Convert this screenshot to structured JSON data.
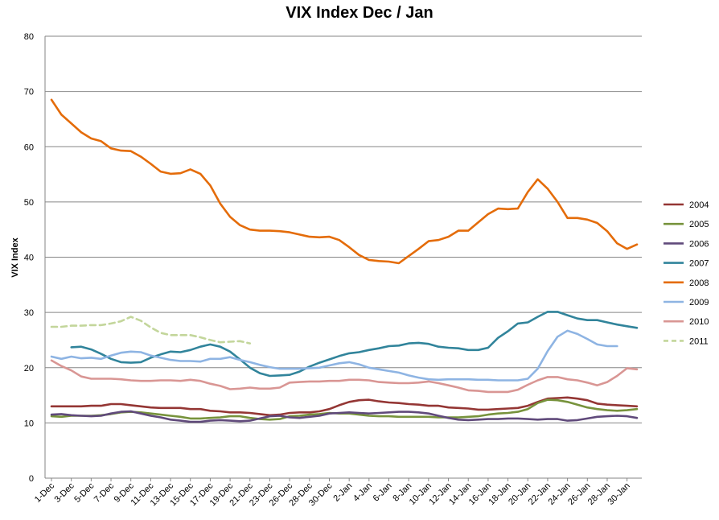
{
  "chart_data": {
    "type": "line",
    "title": "VIX Index Dec / Jan",
    "ylabel": "VIX Index",
    "xlabel": "",
    "ylim": [
      0,
      80
    ],
    "yticks": [
      0,
      10,
      20,
      30,
      40,
      50,
      60,
      70,
      80
    ],
    "grid": "horizontal",
    "legend_position": "right",
    "x": [
      "1-Dec",
      "2-Dec",
      "3-Dec",
      "4-Dec",
      "5-Dec",
      "6-Dec",
      "7-Dec",
      "8-Dec",
      "9-Dec",
      "10-Dec",
      "11-Dec",
      "12-Dec",
      "13-Dec",
      "14-Dec",
      "15-Dec",
      "16-Dec",
      "17-Dec",
      "18-Dec",
      "19-Dec",
      "20-Dec",
      "21-Dec",
      "22-Dec",
      "23-Dec",
      "24-Dec",
      "26-Dec",
      "27-Dec",
      "28-Dec",
      "29-Dec",
      "30-Dec",
      "31-Dec",
      "2-Jan",
      "3-Jan",
      "4-Jan",
      "5-Jan",
      "6-Jan",
      "7-Jan",
      "8-Jan",
      "9-Jan",
      "10-Jan",
      "11-Jan",
      "12-Jan",
      "13-Jan",
      "14-Jan",
      "15-Jan",
      "16-Jan",
      "17-Jan",
      "18-Jan",
      "19-Jan",
      "20-Jan",
      "21-Jan",
      "22-Jan",
      "23-Jan",
      "24-Jan",
      "25-Jan",
      "26-Jan",
      "27-Jan",
      "28-Jan",
      "29-Jan",
      "30-Jan",
      "31-Jan"
    ],
    "xtick_labels": [
      "1-Dec",
      "3-Dec",
      "5-Dec",
      "7-Dec",
      "9-Dec",
      "11-Dec",
      "13-Dec",
      "15-Dec",
      "17-Dec",
      "19-Dec",
      "21-Dec",
      "23-Dec",
      "26-Dec",
      "28-Dec",
      "30-Dec",
      "2-Jan",
      "4-Jan",
      "6-Jan",
      "8-Jan",
      "10-Jan",
      "12-Jan",
      "14-Jan",
      "16-Jan",
      "18-Jan",
      "20-Jan",
      "22-Jan",
      "24-Jan",
      "26-Jan",
      "28-Jan",
      "30-Jan"
    ],
    "series": [
      {
        "name": "2004",
        "color": "#943634",
        "dashed": false,
        "values": [
          13,
          13,
          13,
          13,
          13.1,
          13.1,
          13.4,
          13.4,
          13.2,
          13,
          12.8,
          12.7,
          12.7,
          12.7,
          12.5,
          12.5,
          12.2,
          12.1,
          11.9,
          11.9,
          11.8,
          11.6,
          11.4,
          11.5,
          11.8,
          11.9,
          11.9,
          12.1,
          12.5,
          13.2,
          13.8,
          14.1,
          14.2,
          13.9,
          13.7,
          13.6,
          13.4,
          13.3,
          13.1,
          13.1,
          12.8,
          12.7,
          12.6,
          12.4,
          12.4,
          12.5,
          12.6,
          12.7,
          13.1,
          13.8,
          14.4,
          14.5,
          14.6,
          14.4,
          14.1,
          13.5,
          13.3,
          13.2,
          13.1,
          13
        ]
      },
      {
        "name": "2005",
        "color": "#77933c",
        "dashed": false,
        "values": [
          11.2,
          11.1,
          11.3,
          11.3,
          11.3,
          11.4,
          11.6,
          11.9,
          12,
          11.9,
          11.7,
          11.5,
          11.3,
          11.1,
          10.8,
          10.8,
          10.9,
          11,
          11.2,
          11.2,
          10.9,
          10.7,
          10.6,
          10.7,
          11.2,
          11.3,
          11.5,
          11.6,
          11.8,
          11.7,
          11.7,
          11.5,
          11.3,
          11.2,
          11.2,
          11.1,
          11.1,
          11.1,
          11.1,
          11,
          11,
          11,
          11.1,
          11.2,
          11.5,
          11.7,
          11.8,
          12,
          12.5,
          13.6,
          14.2,
          14.1,
          13.8,
          13.3,
          12.8,
          12.5,
          12.3,
          12.2,
          12.3,
          12.5
        ]
      },
      {
        "name": "2006",
        "color": "#604a7b",
        "dashed": false,
        "values": [
          11.5,
          11.6,
          11.4,
          11.3,
          11.2,
          11.3,
          11.7,
          12,
          12.1,
          11.7,
          11.3,
          11,
          10.6,
          10.4,
          10.2,
          10.2,
          10.4,
          10.5,
          10.4,
          10.3,
          10.4,
          10.8,
          11.2,
          11.3,
          11,
          10.9,
          11.1,
          11.3,
          11.7,
          11.8,
          11.9,
          11.8,
          11.7,
          11.8,
          11.9,
          12,
          12,
          11.9,
          11.7,
          11.3,
          10.9,
          10.6,
          10.5,
          10.6,
          10.7,
          10.7,
          10.8,
          10.8,
          10.7,
          10.6,
          10.7,
          10.7,
          10.4,
          10.5,
          10.8,
          11.1,
          11.2,
          11.3,
          11.2,
          10.9
        ]
      },
      {
        "name": "2007",
        "color": "#31849b",
        "dashed": false,
        "values": [
          null,
          null,
          23.7,
          23.8,
          23.3,
          22.5,
          21.6,
          21,
          20.9,
          21,
          21.8,
          22.4,
          22.9,
          22.8,
          23.2,
          23.8,
          24.2,
          23.8,
          22.9,
          21.5,
          20,
          19,
          18.5,
          18.6,
          18.7,
          19.3,
          20.2,
          20.9,
          21.5,
          22.1,
          22.6,
          22.8,
          23.2,
          23.5,
          23.9,
          24,
          24.4,
          24.5,
          24.3,
          23.8,
          23.6,
          23.5,
          23.2,
          23.2,
          23.6,
          25.4,
          26.6,
          28,
          28.2,
          29.2,
          30.1,
          30.1,
          29.5,
          28.9,
          28.6,
          28.6,
          28.2,
          27.8,
          27.5,
          27.2
        ]
      },
      {
        "name": "2008",
        "color": "#e46c0a",
        "dashed": false,
        "values": [
          68.5,
          65.8,
          64.2,
          62.6,
          61.5,
          61,
          59.7,
          59.3,
          59.2,
          58.2,
          56.9,
          55.5,
          55.1,
          55.2,
          55.9,
          55.1,
          53,
          49.7,
          47.3,
          45.8,
          45,
          44.8,
          44.8,
          44.7,
          44.5,
          44.1,
          43.7,
          43.6,
          43.7,
          43.1,
          41.8,
          40.4,
          39.5,
          39.3,
          39.2,
          38.9,
          40.2,
          41.5,
          42.9,
          43.1,
          43.7,
          44.8,
          44.8,
          46.3,
          47.8,
          48.8,
          48.7,
          48.8,
          51.8,
          54.1,
          52.4,
          50,
          47.1,
          47.1,
          46.8,
          46.2,
          44.7,
          42.5,
          41.5,
          42.3
        ]
      },
      {
        "name": "2009",
        "color": "#8eb4e3",
        "dashed": false,
        "values": [
          22,
          21.6,
          22,
          21.7,
          21.8,
          21.6,
          22.2,
          22.7,
          22.9,
          22.8,
          22.2,
          21.8,
          21.4,
          21.2,
          21.2,
          21.1,
          21.6,
          21.6,
          21.9,
          21.4,
          21,
          20.5,
          20.1,
          19.8,
          19.8,
          19.8,
          19.9,
          20,
          20.4,
          20.8,
          21,
          20.6,
          20,
          19.7,
          19.4,
          19.1,
          18.6,
          18.2,
          17.9,
          17.8,
          17.9,
          17.9,
          17.9,
          17.8,
          17.8,
          17.7,
          17.7,
          17.7,
          18,
          19.8,
          23,
          25.6,
          26.7,
          26.1,
          25.2,
          24.2,
          23.9,
          23.9,
          null,
          null
        ]
      },
      {
        "name": "2010",
        "color": "#d99694",
        "dashed": false,
        "values": [
          21.3,
          20.3,
          19.5,
          18.4,
          18,
          18,
          18,
          17.9,
          17.7,
          17.6,
          17.6,
          17.7,
          17.7,
          17.6,
          17.8,
          17.6,
          17.1,
          16.7,
          16.1,
          16.2,
          16.4,
          16.2,
          16.2,
          16.4,
          17.3,
          17.4,
          17.5,
          17.5,
          17.6,
          17.6,
          17.8,
          17.8,
          17.7,
          17.4,
          17.3,
          17.2,
          17.2,
          17.3,
          17.5,
          17.2,
          16.8,
          16.4,
          15.9,
          15.8,
          15.6,
          15.6,
          15.6,
          16,
          16.9,
          17.7,
          18.3,
          18.3,
          17.9,
          17.7,
          17.3,
          16.8,
          17.4,
          18.5,
          19.9,
          19.7
        ]
      },
      {
        "name": "2011",
        "color": "#c3d69b",
        "dashed": true,
        "values": [
          27.4,
          27.4,
          27.6,
          27.6,
          27.7,
          27.7,
          28,
          28.4,
          29.2,
          28.5,
          27.3,
          26.3,
          25.9,
          25.9,
          25.9,
          25.5,
          25,
          24.6,
          24.7,
          24.8,
          24.4,
          null,
          null,
          null,
          null,
          null,
          null,
          null,
          null,
          null,
          null,
          null,
          null,
          null,
          null,
          null,
          null,
          null,
          null,
          null,
          null,
          null,
          null,
          null,
          null,
          null,
          null,
          null,
          null,
          null,
          null,
          null,
          null,
          null,
          null,
          null,
          null,
          null,
          null,
          null
        ]
      }
    ]
  }
}
